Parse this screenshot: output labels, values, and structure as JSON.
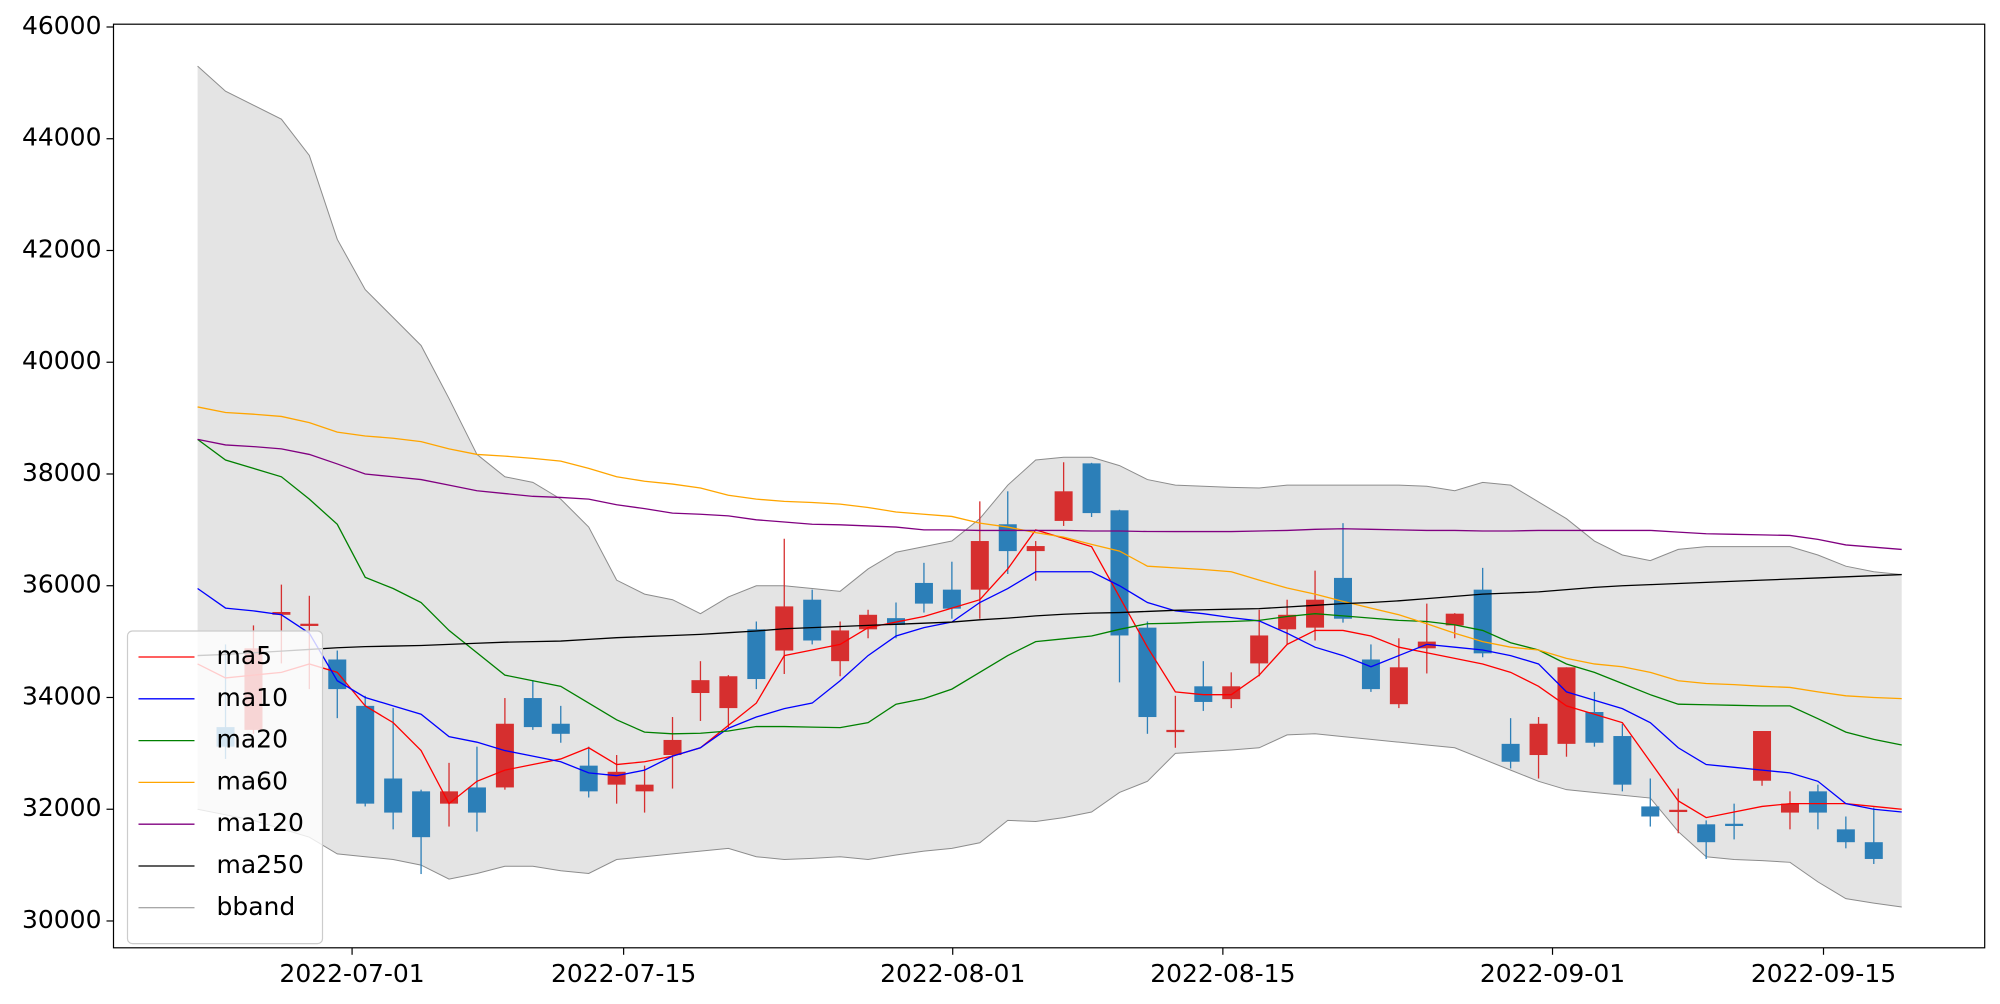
{
  "chart_data": {
    "type": "candlestick",
    "xlim": [
      -3.01,
      63.97
    ],
    "xticks": [
      {
        "value": 5.53,
        "label": "2022-07-01"
      },
      {
        "value": 15.25,
        "label": "2022-07-15"
      },
      {
        "value": 27.03,
        "label": "2022-08-01"
      },
      {
        "value": 36.7,
        "label": "2022-08-15"
      },
      {
        "value": 48.5,
        "label": "2022-09-01"
      },
      {
        "value": 58.2,
        "label": "2022-09-15"
      }
    ],
    "ylim": [
      29520,
      46050
    ],
    "yticks": [
      30000,
      32000,
      34000,
      36000,
      38000,
      40000,
      42000,
      44000,
      46000
    ],
    "up_color": "#d62f2f",
    "down_color": "#2c7fb8",
    "candles": {
      "open": [
        null,
        33470,
        33420,
        35480,
        35280,
        34680,
        33850,
        32550,
        32320,
        32100,
        32390,
        32390,
        33990,
        33530,
        32780,
        32440,
        32320,
        32970,
        34080,
        33810,
        35220,
        34840,
        35750,
        34650,
        35220,
        35420,
        36050,
        35930,
        35930,
        37100,
        36620,
        37160,
        38190,
        37350,
        35250,
        33380,
        34200,
        33970,
        34610,
        35220,
        35250,
        36140,
        34680,
        33880,
        34880,
        35290,
        35930,
        33170,
        32970,
        33170,
        33740,
        33310,
        32050,
        31950,
        31730,
        31740,
        32510,
        31940,
        32320,
        31640,
        31410,
        null
      ],
      "high": [
        null,
        34950,
        35290,
        36020,
        35820,
        34840,
        34030,
        33810,
        32350,
        32830,
        33120,
        33990,
        34310,
        33850,
        33120,
        32970,
        32780,
        33650,
        34650,
        34400,
        35360,
        36840,
        35930,
        35360,
        35570,
        35700,
        36410,
        36430,
        37510,
        37690,
        36800,
        38210,
        38200,
        37360,
        35360,
        34030,
        34650,
        34450,
        35570,
        35750,
        36270,
        37120,
        34950,
        35060,
        35680,
        35510,
        36320,
        33630,
        33650,
        34540,
        34100,
        33530,
        32550,
        32370,
        31800,
        32100,
        33400,
        32320,
        32440,
        31870,
        32030,
        null
      ],
      "low": [
        null,
        32900,
        33350,
        34610,
        34150,
        33630,
        32050,
        31640,
        30840,
        31690,
        31600,
        32350,
        33420,
        33190,
        32210,
        32100,
        31940,
        32370,
        33580,
        33460,
        34150,
        34420,
        34950,
        34380,
        35060,
        35060,
        35520,
        35410,
        35410,
        36210,
        36090,
        37070,
        37230,
        34270,
        33350,
        33100,
        33760,
        33810,
        34380,
        34950,
        35020,
        35340,
        34100,
        33810,
        34430,
        35060,
        34720,
        32730,
        32550,
        32940,
        33120,
        32320,
        31690,
        31570,
        31110,
        31460,
        32420,
        31640,
        31640,
        31300,
        31020,
        null
      ],
      "close": [
        null,
        33120,
        34880,
        35530,
        35320,
        34150,
        32100,
        31940,
        31500,
        32320,
        31940,
        33530,
        33470,
        33350,
        32320,
        32670,
        32440,
        33240,
        34310,
        34380,
        34330,
        35630,
        35020,
        35200,
        35480,
        35300,
        35680,
        35590,
        36800,
        36620,
        36710,
        37690,
        37300,
        35110,
        33650,
        33420,
        33920,
        34200,
        35110,
        35480,
        35750,
        35410,
        34150,
        34540,
        35000,
        35500,
        34790,
        32850,
        33530,
        34540,
        33190,
        32440,
        31870,
        31990,
        31410,
        31700,
        33400,
        32100,
        31940,
        31410,
        31110,
        null
      ]
    },
    "band": {
      "name": "bband",
      "color": "#8c8c8c",
      "fill": "#e4e4e4",
      "upper": [
        45300,
        44850,
        44600,
        44350,
        43700,
        42200,
        41300,
        40800,
        40300,
        39350,
        38350,
        37950,
        37850,
        37550,
        37050,
        36100,
        35850,
        35750,
        35500,
        35800,
        36000,
        36000,
        35950,
        35900,
        36300,
        36600,
        36700,
        36800,
        37200,
        37800,
        38250,
        38300,
        38300,
        38150,
        37900,
        37800,
        37780,
        37760,
        37750,
        37800,
        37800,
        37800,
        37800,
        37800,
        37780,
        37700,
        37850,
        37800,
        37500,
        37200,
        36800,
        36550,
        36450,
        36650,
        36700,
        36700,
        36700,
        36700,
        36550,
        36350,
        36250,
        36200
      ],
      "lower": [
        32000,
        31900,
        31800,
        31650,
        31500,
        31200,
        31150,
        31100,
        31000,
        30750,
        30850,
        30980,
        30980,
        30900,
        30850,
        31100,
        31150,
        31200,
        31250,
        31300,
        31150,
        31100,
        31120,
        31150,
        31100,
        31180,
        31250,
        31300,
        31400,
        31800,
        31780,
        31850,
        31950,
        32300,
        32500,
        33000,
        33030,
        33060,
        33100,
        33330,
        33350,
        33300,
        33250,
        33200,
        33150,
        33100,
        32900,
        32700,
        32500,
        32350,
        32300,
        32250,
        32200,
        31600,
        31150,
        31100,
        31080,
        31050,
        30700,
        30400,
        30320,
        30250
      ]
    },
    "series": [
      {
        "name": "ma5",
        "color": "#ff0000",
        "values": [
          34600,
          34350,
          34400,
          34450,
          34600,
          34450,
          33850,
          33550,
          33050,
          32100,
          32500,
          32700,
          32800,
          32900,
          33100,
          32800,
          32850,
          32950,
          33100,
          33500,
          33900,
          34750,
          34850,
          34950,
          35250,
          35350,
          35450,
          35600,
          35750,
          36300,
          37000,
          36850,
          36700,
          35800,
          34900,
          34100,
          34050,
          34050,
          34400,
          34950,
          35200,
          35200,
          35100,
          34900,
          34800,
          34700,
          34600,
          34450,
          34200,
          33850,
          33700,
          33550,
          32850,
          32150,
          31850,
          31950,
          32050,
          32100,
          32100,
          32100,
          32050,
          32000
        ]
      },
      {
        "name": "ma10",
        "color": "#0000ff",
        "values": [
          35950,
          35600,
          35550,
          35480,
          35150,
          34300,
          34000,
          33850,
          33700,
          33300,
          33200,
          33050,
          32950,
          32850,
          32650,
          32600,
          32700,
          32950,
          33100,
          33450,
          33650,
          33800,
          33900,
          34300,
          34750,
          35100,
          35250,
          35350,
          35700,
          35950,
          36250,
          36250,
          36250,
          36000,
          35700,
          35550,
          35500,
          35430,
          35370,
          35150,
          34900,
          34750,
          34550,
          34750,
          34950,
          34900,
          34850,
          34750,
          34600,
          34100,
          33950,
          33800,
          33550,
          33100,
          32800,
          32750,
          32700,
          32650,
          32500,
          32100,
          32000,
          31950
        ]
      },
      {
        "name": "ma20",
        "color": "#008000",
        "values": [
          38620,
          38250,
          38100,
          37950,
          37550,
          37100,
          36150,
          35950,
          35700,
          35200,
          34800,
          34400,
          34300,
          34200,
          33900,
          33600,
          33380,
          33350,
          33360,
          33400,
          33480,
          33480,
          33470,
          33460,
          33550,
          33880,
          33980,
          34150,
          34450,
          34750,
          35000,
          35050,
          35100,
          35220,
          35320,
          35330,
          35350,
          35360,
          35380,
          35450,
          35500,
          35460,
          35420,
          35380,
          35360,
          35300,
          35200,
          34980,
          34850,
          34600,
          34450,
          34250,
          34050,
          33880,
          33870,
          33860,
          33850,
          33850,
          33620,
          33380,
          33250,
          33150
        ]
      },
      {
        "name": "ma60",
        "color": "#ffa500",
        "values": [
          39200,
          39100,
          39070,
          39030,
          38920,
          38750,
          38680,
          38640,
          38580,
          38450,
          38350,
          38320,
          38280,
          38230,
          38100,
          37950,
          37870,
          37820,
          37750,
          37620,
          37550,
          37510,
          37490,
          37460,
          37400,
          37320,
          37280,
          37240,
          37120,
          37050,
          36950,
          36870,
          36740,
          36620,
          36350,
          36320,
          36290,
          36250,
          36100,
          35960,
          35850,
          35720,
          35600,
          35480,
          35320,
          35150,
          35000,
          34900,
          34850,
          34700,
          34600,
          34550,
          34450,
          34300,
          34250,
          34230,
          34200,
          34180,
          34100,
          34030,
          34000,
          33980
        ]
      },
      {
        "name": "ma120",
        "color": "#800080",
        "values": [
          38620,
          38520,
          38490,
          38450,
          38350,
          38180,
          38000,
          37950,
          37900,
          37800,
          37700,
          37650,
          37600,
          37580,
          37550,
          37450,
          37380,
          37300,
          37280,
          37250,
          37180,
          37140,
          37100,
          37090,
          37070,
          37050,
          37000,
          37000,
          36990,
          36990,
          36990,
          36990,
          36980,
          36980,
          36970,
          36970,
          36970,
          36970,
          36980,
          36990,
          37010,
          37020,
          37010,
          37000,
          36990,
          36990,
          36980,
          36980,
          36990,
          36990,
          36990,
          36990,
          36990,
          36960,
          36930,
          36920,
          36910,
          36900,
          36830,
          36730,
          36690,
          36650
        ]
      },
      {
        "name": "ma250",
        "color": "#000000",
        "values": [
          34750,
          34770,
          34800,
          34830,
          34860,
          34890,
          34910,
          34920,
          34930,
          34950,
          34970,
          34990,
          35000,
          35010,
          35040,
          35070,
          35090,
          35110,
          35130,
          35160,
          35190,
          35230,
          35250,
          35270,
          35290,
          35310,
          35330,
          35350,
          35390,
          35420,
          35460,
          35490,
          35510,
          35520,
          35540,
          35560,
          35570,
          35580,
          35590,
          35620,
          35650,
          35680,
          35700,
          35730,
          35770,
          35810,
          35850,
          35870,
          35890,
          35930,
          35970,
          36000,
          36020,
          36040,
          36060,
          36080,
          36100,
          36120,
          36140,
          36160,
          36180,
          36200
        ]
      }
    ]
  }
}
